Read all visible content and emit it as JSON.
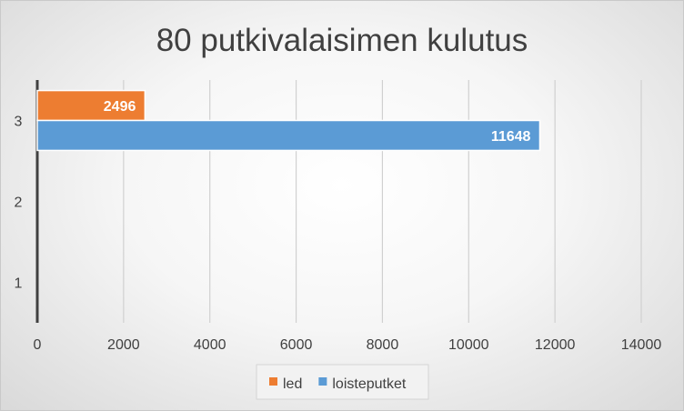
{
  "chart_data": {
    "type": "bar",
    "orientation": "horizontal",
    "title": "80 putkivalaisimen kulutus",
    "categories": [
      "1",
      "2",
      "3"
    ],
    "series": [
      {
        "name": "led",
        "color": "#ED7D31",
        "values": [
          null,
          null,
          2496
        ]
      },
      {
        "name": "loisteputket",
        "color": "#5B9BD5",
        "values": [
          null,
          null,
          11648
        ]
      }
    ],
    "data_labels": [
      "2496",
      "11648"
    ],
    "xlim": [
      0,
      14000
    ],
    "x_ticks": [
      "0",
      "2000",
      "4000",
      "6000",
      "8000",
      "10000",
      "12000",
      "14000"
    ],
    "grid": true,
    "legend_position": "bottom",
    "colors": {
      "grid": "#d0d0d0",
      "axis": "#404040",
      "text": "#404040",
      "label_text": "#ffffff"
    }
  }
}
